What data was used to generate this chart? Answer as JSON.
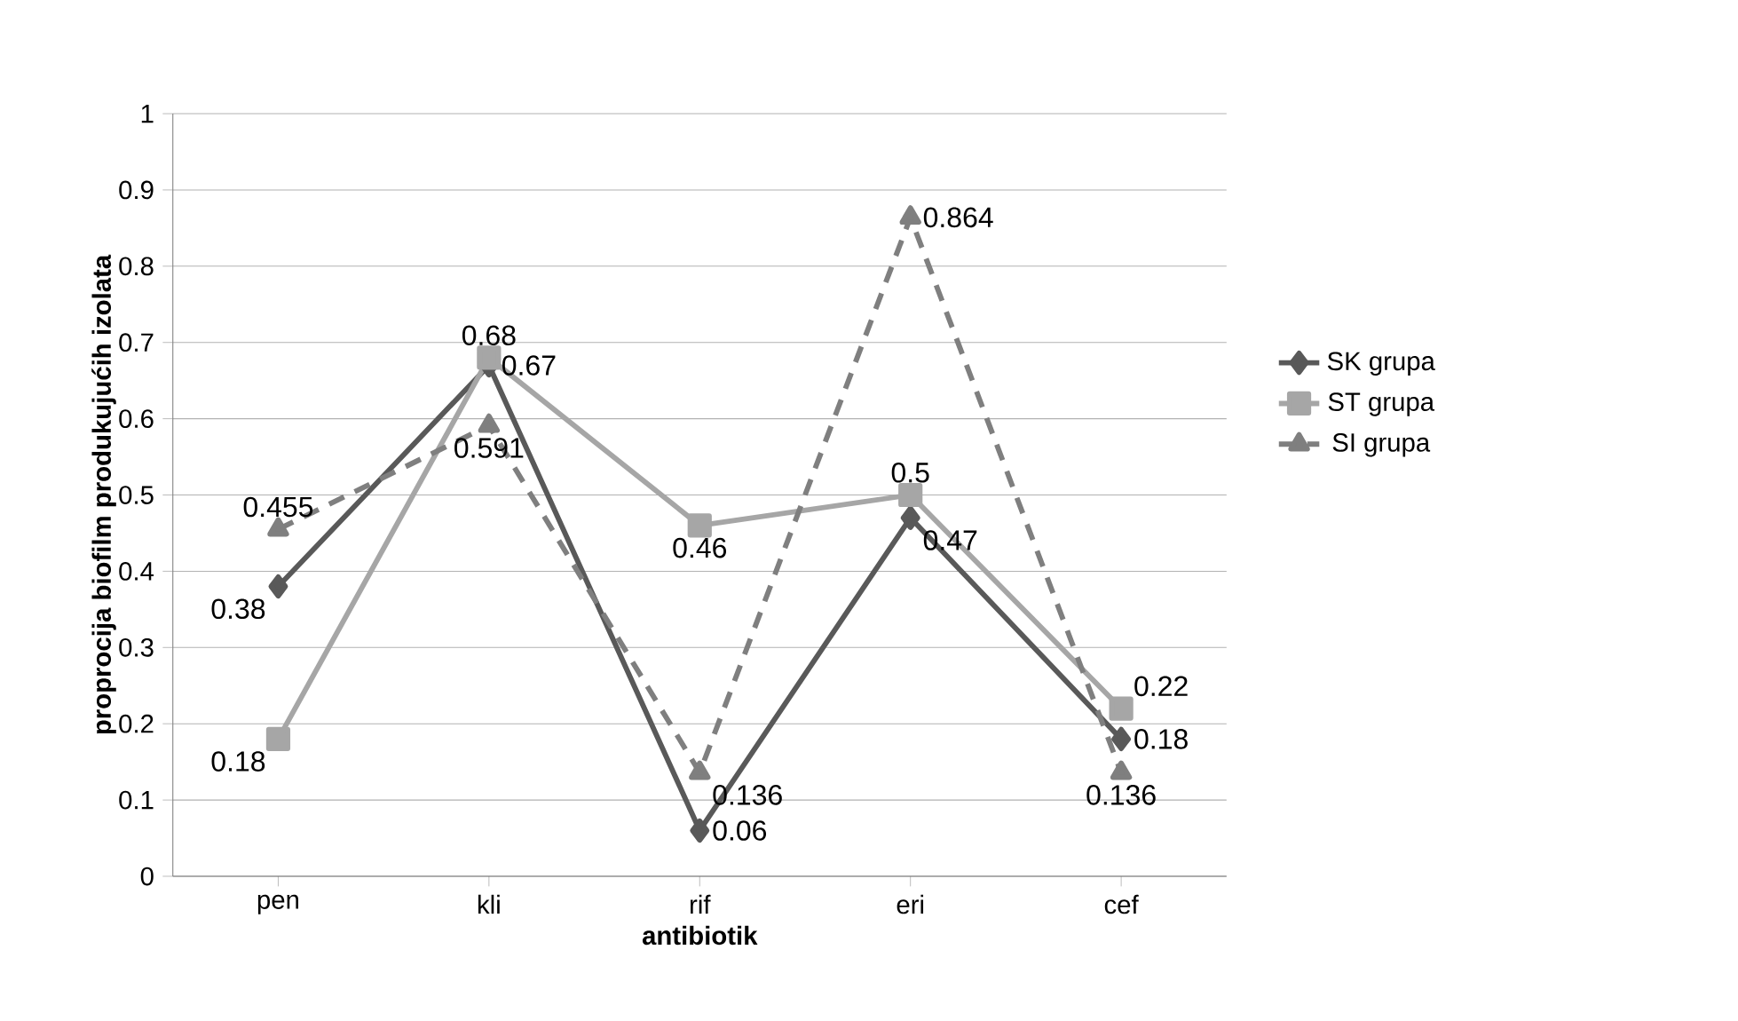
{
  "chart_data": {
    "type": "line",
    "xlabel": "antibiotik",
    "ylabel": "proprocija biofilm produkujućih izolata",
    "categories": [
      "pen",
      "kli",
      "rif",
      "eri",
      "cef"
    ],
    "series": [
      {
        "name": "SK grupa",
        "color": "#595959",
        "marker": "diamond",
        "line_style": "solid",
        "values": [
          0.38,
          0.67,
          0.06,
          0.47,
          0.18
        ]
      },
      {
        "name": "ST grupa",
        "color": "#a6a6a6",
        "marker": "square",
        "line_style": "solid",
        "values": [
          0.18,
          0.68,
          0.46,
          0.5,
          0.22
        ]
      },
      {
        "name": "SI grupa",
        "color": "#7f7f7f",
        "marker": "triangle",
        "line_style": "dashed",
        "values": [
          0.455,
          0.591,
          0.136,
          0.864,
          0.136
        ]
      }
    ],
    "ylim": [
      0,
      1
    ],
    "yticks": [
      0,
      0.1,
      0.2,
      0.3,
      0.4,
      0.5,
      0.6,
      0.7,
      0.8,
      0.9,
      1
    ],
    "grid": "y",
    "legend": "right",
    "data_labels": true
  }
}
